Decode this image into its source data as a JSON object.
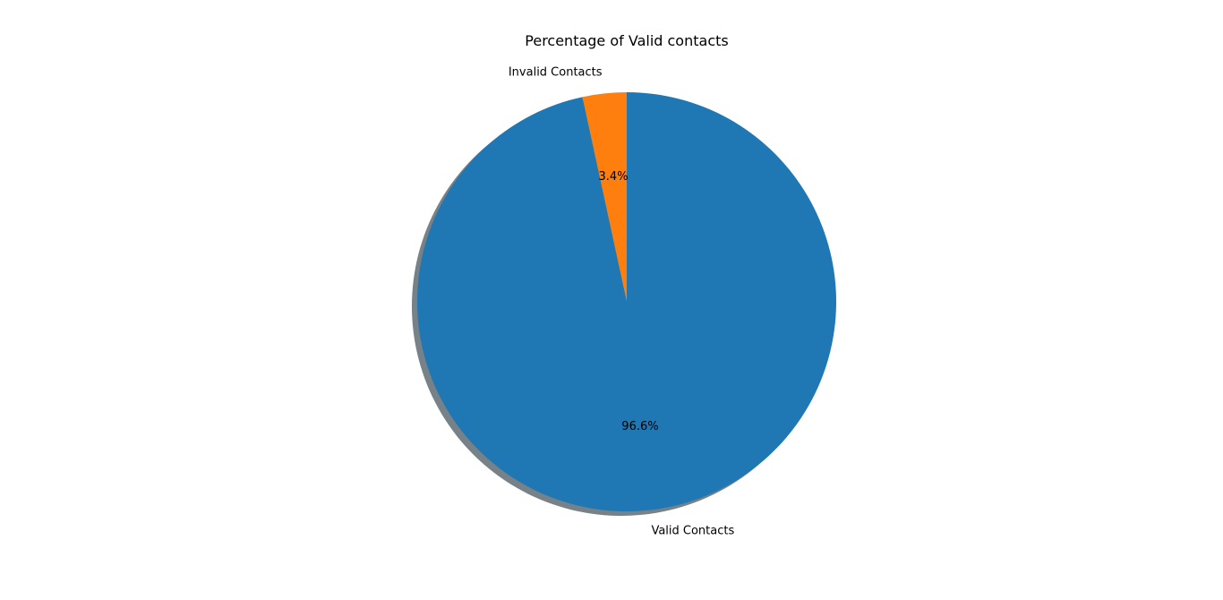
{
  "chart_data": {
    "type": "pie",
    "title": "Percentage of Valid contacts",
    "start_angle_deg": 90,
    "direction": "counterclockwise",
    "shadow": true,
    "slices": [
      {
        "label": "Invalid Contacts",
        "value": 3.4,
        "pct_label": "3.4%",
        "color": "#ff7f0e"
      },
      {
        "label": "Valid Contacts",
        "value": 96.6,
        "pct_label": "96.6%",
        "color": "#1f77b4"
      }
    ],
    "shadow_color": "#5e6b73"
  }
}
